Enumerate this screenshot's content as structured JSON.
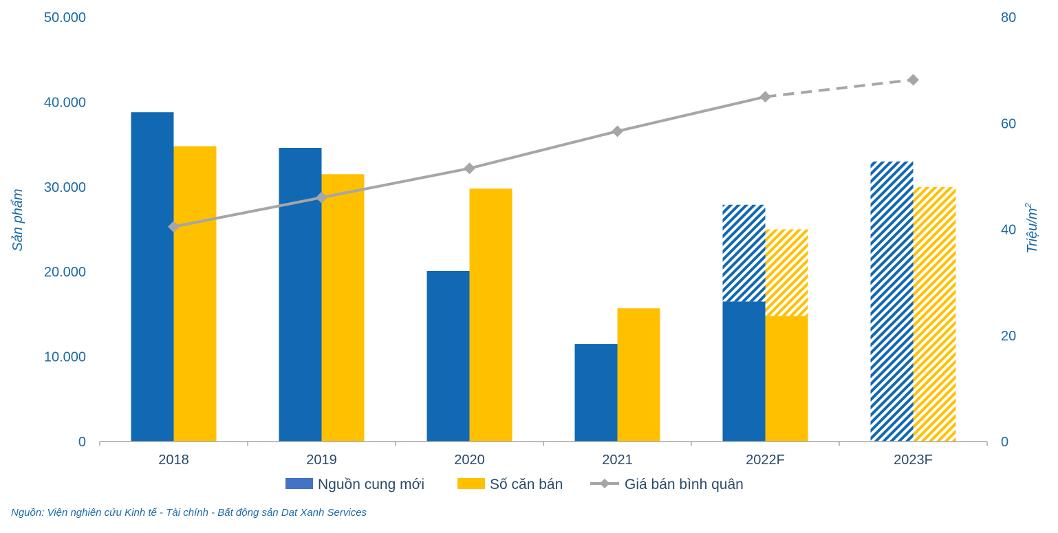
{
  "chart_data": {
    "type": "bar",
    "categories": [
      "2018",
      "2019",
      "2020",
      "2021",
      "2022F",
      "2023F"
    ],
    "series": [
      {
        "name": "Nguồn cung mới",
        "axis": "left",
        "color": "#1168b3",
        "values": [
          38800,
          34600,
          20100,
          11500,
          16500,
          0
        ],
        "forecast_values": [
          0,
          0,
          0,
          0,
          11400,
          33000
        ]
      },
      {
        "name": "Số căn bán",
        "axis": "left",
        "color": "#ffc000",
        "values": [
          34800,
          31500,
          29800,
          15700,
          14800,
          0
        ],
        "forecast_values": [
          0,
          0,
          0,
          0,
          10200,
          30000
        ]
      },
      {
        "name": "Giá bán bình quân",
        "type": "line",
        "axis": "right",
        "color": "#a6a6a6",
        "values": [
          40.5,
          46,
          51.5,
          58.5,
          65,
          68.2
        ],
        "forecast_from_index": 4
      }
    ],
    "ylabel": "Sản phẩm",
    "ylim": [
      0,
      50000
    ],
    "yticks": [
      "0",
      "10.000",
      "20.000",
      "30.000",
      "40.000",
      "50.000"
    ],
    "y2label_main": "Triệu/m",
    "y2label_sup": "2",
    "y2lim": [
      0,
      80
    ],
    "y2ticks": [
      "0",
      "20",
      "40",
      "60",
      "80"
    ],
    "legend": [
      "Nguồn cung mới",
      "Số căn bán",
      "Giá bán bình quân"
    ],
    "legend_position": "bottom",
    "legend_swatch_color": "#4472c4",
    "source": "Nguồn: Viện nghiên cứu Kinh tế - Tài chính - Bất động sản Dat Xanh Services"
  }
}
